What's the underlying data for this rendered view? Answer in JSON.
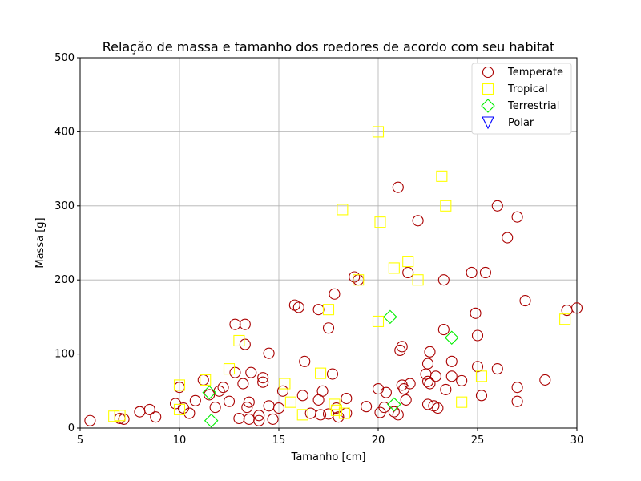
{
  "chart_data": {
    "type": "scatter",
    "title": "Relação de massa e tamanho dos roedores de acordo com seu habitat",
    "xlabel": "Tamanho [cm]",
    "ylabel": "Massa [g]",
    "xlim": [
      5,
      30
    ],
    "ylim": [
      0,
      500
    ],
    "xticks": [
      5,
      10,
      15,
      20,
      25,
      30
    ],
    "yticks": [
      0,
      100,
      200,
      300,
      400,
      500
    ],
    "grid": true,
    "legend_position": "top-right",
    "series": [
      {
        "name": "Temperate",
        "marker": "circle",
        "color": "#aa0000",
        "points": [
          {
            "x": 5.5,
            "y": 10
          },
          {
            "x": 7,
            "y": 13
          },
          {
            "x": 7.2,
            "y": 12
          },
          {
            "x": 8,
            "y": 22
          },
          {
            "x": 8.5,
            "y": 25
          },
          {
            "x": 8.8,
            "y": 15
          },
          {
            "x": 9.8,
            "y": 33
          },
          {
            "x": 10,
            "y": 55
          },
          {
            "x": 10.2,
            "y": 27
          },
          {
            "x": 10.5,
            "y": 20
          },
          {
            "x": 10.8,
            "y": 37
          },
          {
            "x": 11.2,
            "y": 65
          },
          {
            "x": 11.5,
            "y": 45
          },
          {
            "x": 11.8,
            "y": 28
          },
          {
            "x": 12,
            "y": 50
          },
          {
            "x": 12.2,
            "y": 55
          },
          {
            "x": 12.5,
            "y": 36
          },
          {
            "x": 12.8,
            "y": 140
          },
          {
            "x": 12.8,
            "y": 75
          },
          {
            "x": 13,
            "y": 13
          },
          {
            "x": 13.2,
            "y": 60
          },
          {
            "x": 13.3,
            "y": 140
          },
          {
            "x": 13.3,
            "y": 113
          },
          {
            "x": 13.4,
            "y": 28
          },
          {
            "x": 13.5,
            "y": 12
          },
          {
            "x": 13.5,
            "y": 35
          },
          {
            "x": 13.6,
            "y": 75
          },
          {
            "x": 14,
            "y": 10
          },
          {
            "x": 14,
            "y": 17
          },
          {
            "x": 14.2,
            "y": 62
          },
          {
            "x": 14.2,
            "y": 68
          },
          {
            "x": 14.5,
            "y": 30
          },
          {
            "x": 14.5,
            "y": 101
          },
          {
            "x": 14.7,
            "y": 12
          },
          {
            "x": 15,
            "y": 27
          },
          {
            "x": 15.2,
            "y": 50
          },
          {
            "x": 15.8,
            "y": 166
          },
          {
            "x": 16,
            "y": 163
          },
          {
            "x": 16.2,
            "y": 44
          },
          {
            "x": 16.3,
            "y": 90
          },
          {
            "x": 16.6,
            "y": 20
          },
          {
            "x": 17,
            "y": 38
          },
          {
            "x": 17,
            "y": 160
          },
          {
            "x": 17.1,
            "y": 18
          },
          {
            "x": 17.2,
            "y": 50
          },
          {
            "x": 17.5,
            "y": 135
          },
          {
            "x": 17.5,
            "y": 19
          },
          {
            "x": 17.7,
            "y": 73
          },
          {
            "x": 17.8,
            "y": 181
          },
          {
            "x": 17.9,
            "y": 27
          },
          {
            "x": 18,
            "y": 15
          },
          {
            "x": 18.4,
            "y": 40
          },
          {
            "x": 18.4,
            "y": 20
          },
          {
            "x": 18.8,
            "y": 204
          },
          {
            "x": 19,
            "y": 200
          },
          {
            "x": 19.4,
            "y": 29
          },
          {
            "x": 20,
            "y": 53
          },
          {
            "x": 20.1,
            "y": 21
          },
          {
            "x": 20.3,
            "y": 28
          },
          {
            "x": 20.4,
            "y": 48
          },
          {
            "x": 20.8,
            "y": 22
          },
          {
            "x": 21,
            "y": 18
          },
          {
            "x": 21,
            "y": 325
          },
          {
            "x": 21.1,
            "y": 105
          },
          {
            "x": 21.2,
            "y": 58
          },
          {
            "x": 21.2,
            "y": 110
          },
          {
            "x": 21.3,
            "y": 53
          },
          {
            "x": 21.4,
            "y": 38
          },
          {
            "x": 21.5,
            "y": 210
          },
          {
            "x": 21.6,
            "y": 60
          },
          {
            "x": 22,
            "y": 280
          },
          {
            "x": 22.4,
            "y": 73
          },
          {
            "x": 22.5,
            "y": 32
          },
          {
            "x": 22.5,
            "y": 87
          },
          {
            "x": 22.5,
            "y": 63
          },
          {
            "x": 22.6,
            "y": 103
          },
          {
            "x": 22.6,
            "y": 60
          },
          {
            "x": 22.8,
            "y": 30
          },
          {
            "x": 22.9,
            "y": 70
          },
          {
            "x": 23,
            "y": 27
          },
          {
            "x": 23.3,
            "y": 133
          },
          {
            "x": 23.3,
            "y": 200
          },
          {
            "x": 23.4,
            "y": 52
          },
          {
            "x": 23.7,
            "y": 90
          },
          {
            "x": 23.7,
            "y": 70
          },
          {
            "x": 24.2,
            "y": 64
          },
          {
            "x": 24.7,
            "y": 210
          },
          {
            "x": 24.9,
            "y": 155
          },
          {
            "x": 25,
            "y": 125
          },
          {
            "x": 25,
            "y": 83
          },
          {
            "x": 25.2,
            "y": 44
          },
          {
            "x": 25.4,
            "y": 210
          },
          {
            "x": 26,
            "y": 300
          },
          {
            "x": 26,
            "y": 80
          },
          {
            "x": 26.5,
            "y": 257
          },
          {
            "x": 27,
            "y": 285
          },
          {
            "x": 27,
            "y": 55
          },
          {
            "x": 27,
            "y": 36
          },
          {
            "x": 27.4,
            "y": 172
          },
          {
            "x": 28.4,
            "y": 65
          },
          {
            "x": 29.5,
            "y": 159
          },
          {
            "x": 30,
            "y": 162
          }
        ]
      },
      {
        "name": "Tropical",
        "marker": "square",
        "color": "#ffff00",
        "points": [
          {
            "x": 6.7,
            "y": 16
          },
          {
            "x": 7,
            "y": 17
          },
          {
            "x": 10,
            "y": 25
          },
          {
            "x": 10,
            "y": 58
          },
          {
            "x": 11.3,
            "y": 65
          },
          {
            "x": 12.5,
            "y": 80
          },
          {
            "x": 13,
            "y": 118
          },
          {
            "x": 15.3,
            "y": 60
          },
          {
            "x": 15.6,
            "y": 35
          },
          {
            "x": 16.2,
            "y": 18
          },
          {
            "x": 17.1,
            "y": 74
          },
          {
            "x": 17.5,
            "y": 160
          },
          {
            "x": 17.8,
            "y": 32
          },
          {
            "x": 17.9,
            "y": 24
          },
          {
            "x": 18.2,
            "y": 295
          },
          {
            "x": 18.3,
            "y": 20
          },
          {
            "x": 19,
            "y": 200
          },
          {
            "x": 20,
            "y": 400
          },
          {
            "x": 20,
            "y": 144
          },
          {
            "x": 20.1,
            "y": 278
          },
          {
            "x": 20.8,
            "y": 216
          },
          {
            "x": 21.5,
            "y": 225
          },
          {
            "x": 22,
            "y": 200
          },
          {
            "x": 23.2,
            "y": 340
          },
          {
            "x": 23.4,
            "y": 300
          },
          {
            "x": 24.2,
            "y": 35
          },
          {
            "x": 25.2,
            "y": 70
          },
          {
            "x": 29.4,
            "y": 147
          }
        ]
      },
      {
        "name": "Terrestrial",
        "marker": "diamond",
        "color": "#00ee00",
        "points": [
          {
            "x": 11.5,
            "y": 48
          },
          {
            "x": 11.6,
            "y": 10
          },
          {
            "x": 20.6,
            "y": 150
          },
          {
            "x": 20.8,
            "y": 32
          },
          {
            "x": 23.7,
            "y": 122
          }
        ]
      },
      {
        "name": "Polar",
        "marker": "triangle-down",
        "color": "#0000ff",
        "points": []
      }
    ]
  }
}
